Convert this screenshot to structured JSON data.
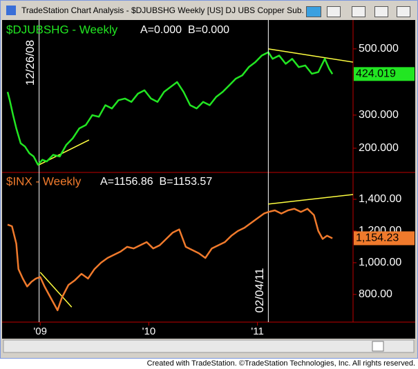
{
  "window": {
    "title": "TradeStation Chart Analysis - $DJUBSHG Weekly [US] DJ UBS Copper Sub...",
    "footer": "Created with TradeStation. ©TradeStation Technologies, Inc. All rights reserved."
  },
  "chart_data": [
    {
      "type": "line",
      "title": "$DJUBSHG - Weekly",
      "subtitle": "A=0.000  B=0.000",
      "x": [
        2008.7,
        2008.72,
        2008.75,
        2008.78,
        2008.82,
        2008.86,
        2008.9,
        2008.94,
        2008.98,
        2009.02,
        2009.06,
        2009.12,
        2009.18,
        2009.24,
        2009.3,
        2009.36,
        2009.42,
        2009.48,
        2009.54,
        2009.6,
        2009.66,
        2009.72,
        2009.78,
        2009.84,
        2009.9,
        2009.96,
        2010.02,
        2010.08,
        2010.14,
        2010.2,
        2010.26,
        2010.32,
        2010.38,
        2010.44,
        2010.5,
        2010.56,
        2010.62,
        2010.68,
        2010.74,
        2010.8,
        2010.86,
        2010.92,
        2010.98,
        2011.04,
        2011.1,
        2011.14,
        2011.2,
        2011.26,
        2011.32,
        2011.38,
        2011.44,
        2011.5,
        2011.56,
        2011.62,
        2011.66,
        2011.69
      ],
      "series": [
        {
          "color": "#22e622",
          "values": [
            370,
            345,
            300,
            260,
            215,
            205,
            185,
            175,
            150,
            165,
            160,
            180,
            175,
            210,
            230,
            260,
            270,
            300,
            295,
            330,
            320,
            345,
            350,
            340,
            365,
            375,
            350,
            340,
            370,
            385,
            400,
            370,
            330,
            320,
            340,
            330,
            355,
            370,
            390,
            410,
            420,
            445,
            460,
            480,
            490,
            470,
            480,
            455,
            470,
            445,
            450,
            425,
            430,
            470,
            440,
            424.019
          ]
        }
      ],
      "xlim": [
        2008.7,
        2011.88
      ],
      "ylim": [
        129,
        583
      ],
      "yticks": [
        {
          "value": 200,
          "label": "200.000"
        },
        {
          "value": 300,
          "label": "300.000"
        },
        {
          "value": 500,
          "label": "500.000"
        }
      ],
      "trendlines": [
        {
          "x": [
            2008.99,
            2009.45
          ],
          "y": [
            150,
            225
          ]
        },
        {
          "x": [
            2011.1,
            2011.88
          ],
          "y": [
            500,
            460
          ]
        }
      ],
      "annotations": [
        {
          "x": 2008.99,
          "label": "12/26/08"
        }
      ]
    },
    {
      "type": "line",
      "title": "$INX - Weekly",
      "subtitle": "A=1156.86  B=1153.57",
      "x": [
        2008.7,
        2008.74,
        2008.78,
        2008.8,
        2008.84,
        2008.88,
        2008.92,
        2008.96,
        2009.0,
        2009.04,
        2009.08,
        2009.12,
        2009.16,
        2009.2,
        2009.26,
        2009.32,
        2009.38,
        2009.44,
        2009.5,
        2009.56,
        2009.62,
        2009.68,
        2009.74,
        2009.8,
        2009.86,
        2009.92,
        2009.98,
        2010.04,
        2010.1,
        2010.16,
        2010.22,
        2010.28,
        2010.34,
        2010.4,
        2010.46,
        2010.52,
        2010.58,
        2010.64,
        2010.7,
        2010.76,
        2010.82,
        2010.88,
        2010.94,
        2011.0,
        2011.06,
        2011.1,
        2011.16,
        2011.22,
        2011.28,
        2011.34,
        2011.4,
        2011.46,
        2011.52,
        2011.56,
        2011.6,
        2011.64,
        2011.69
      ],
      "series": [
        {
          "color": "#f07a2c",
          "values": [
            1240,
            1230,
            1120,
            960,
            900,
            850,
            880,
            900,
            910,
            850,
            800,
            750,
            700,
            780,
            860,
            890,
            930,
            900,
            960,
            1000,
            1030,
            1050,
            1070,
            1100,
            1090,
            1110,
            1130,
            1090,
            1110,
            1150,
            1190,
            1210,
            1100,
            1080,
            1060,
            1030,
            1090,
            1110,
            1130,
            1170,
            1200,
            1220,
            1250,
            1280,
            1310,
            1320,
            1330,
            1310,
            1330,
            1340,
            1320,
            1340,
            1300,
            1200,
            1150,
            1170,
            1154.23
          ],
          "value_labels": [
            null,
            null,
            null,
            null,
            null,
            null,
            null,
            null,
            null,
            null,
            null,
            null,
            null,
            null,
            null,
            null,
            null,
            null,
            null,
            null,
            null,
            null,
            null,
            null,
            null,
            null,
            null,
            null,
            null,
            null,
            null,
            null,
            null,
            null,
            null,
            null,
            null,
            null,
            null,
            null,
            null,
            null,
            null,
            null,
            null,
            null,
            null,
            null,
            null,
            null,
            null,
            null,
            null,
            null,
            null,
            null,
            "1,154.23"
          ]
        }
      ],
      "xlim": [
        2008.7,
        2011.88
      ],
      "ylim": [
        630,
        1565
      ],
      "xticks": [
        {
          "value": 2009,
          "label": "'09"
        },
        {
          "value": 2010,
          "label": "'10"
        },
        {
          "value": 2011,
          "label": "'11"
        }
      ],
      "yticks": [
        {
          "value": 800,
          "label": "800.00"
        },
        {
          "value": 1000,
          "label": "1,000.00"
        },
        {
          "value": 1200,
          "label": "1,200.00"
        },
        {
          "value": 1400,
          "label": "1,400.00"
        }
      ],
      "trendlines": [
        {
          "x": [
            2009.0,
            2009.29
          ],
          "y": [
            940,
            720
          ]
        },
        {
          "x": [
            2011.1,
            2011.88
          ],
          "y": [
            1370,
            1430
          ]
        }
      ],
      "annotations": [
        {
          "x": 2011.1,
          "label": "02/04/11"
        }
      ]
    }
  ]
}
